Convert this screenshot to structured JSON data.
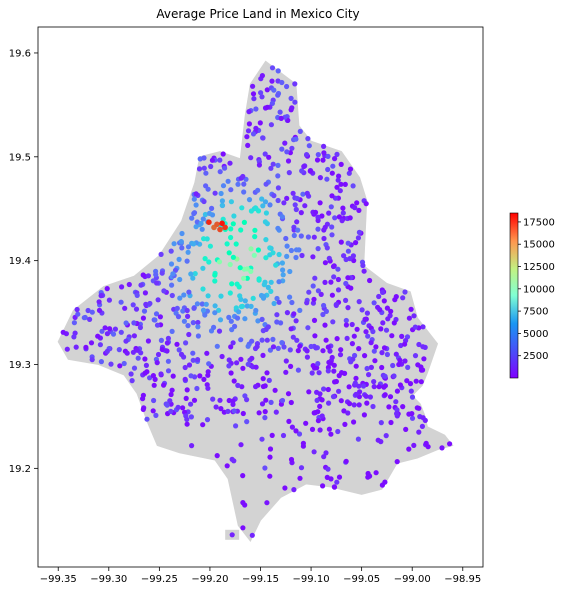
{
  "chart_data": {
    "type": "scatter",
    "title": "Average Price Land in Mexico City",
    "xlabel": "",
    "ylabel": "",
    "xlim": [
      -99.37,
      -98.93
    ],
    "ylim": [
      19.105,
      19.625
    ],
    "x_ticks": [
      -99.35,
      -99.3,
      -99.25,
      -99.2,
      -99.15,
      -99.1,
      -99.05,
      -99.0,
      -98.95
    ],
    "x_tick_labels": [
      "−99.35",
      "−99.30",
      "−99.25",
      "−99.20",
      "−99.15",
      "−99.10",
      "−99.05",
      "−99.00",
      "−98.95"
    ],
    "y_ticks": [
      19.2,
      19.3,
      19.4,
      19.5,
      19.6
    ],
    "y_tick_labels": [
      "19.2",
      "19.3",
      "19.4",
      "19.5",
      "19.6"
    ],
    "grid": false,
    "colorbar": {
      "range": [
        0,
        18500
      ],
      "ticks": [
        2500,
        5000,
        7500,
        10000,
        12500,
        15000,
        17500
      ],
      "tick_labels": [
        "2500",
        "5000",
        "7500",
        "10000",
        "12500",
        "15000",
        "17500"
      ],
      "colormap": "rainbow"
    },
    "base_map_color": "#d3d3d3",
    "boundary_polygon": [
      [
        -99.145,
        19.592
      ],
      [
        -99.115,
        19.57
      ],
      [
        -99.112,
        19.53
      ],
      [
        -99.1,
        19.515
      ],
      [
        -99.07,
        19.505
      ],
      [
        -99.052,
        19.48
      ],
      [
        -99.045,
        19.458
      ],
      [
        -99.048,
        19.395
      ],
      [
        -99.025,
        19.378
      ],
      [
        -99.002,
        19.37
      ],
      [
        -98.995,
        19.345
      ],
      [
        -98.975,
        19.32
      ],
      [
        -98.985,
        19.292
      ],
      [
        -98.99,
        19.28
      ],
      [
        -99.0,
        19.27
      ],
      [
        -98.992,
        19.262
      ],
      [
        -98.988,
        19.252
      ],
      [
        -98.985,
        19.24
      ],
      [
        -98.968,
        19.232
      ],
      [
        -98.96,
        19.222
      ],
      [
        -98.975,
        19.218
      ],
      [
        -98.995,
        19.21
      ],
      [
        -99.015,
        19.205
      ],
      [
        -99.03,
        19.18
      ],
      [
        -99.05,
        19.175
      ],
      [
        -99.08,
        19.182
      ],
      [
        -99.105,
        19.185
      ],
      [
        -99.13,
        19.172
      ],
      [
        -99.15,
        19.15
      ],
      [
        -99.16,
        19.13
      ],
      [
        -99.172,
        19.145
      ],
      [
        -99.182,
        19.19
      ],
      [
        -99.195,
        19.208
      ],
      [
        -99.23,
        19.215
      ],
      [
        -99.252,
        19.222
      ],
      [
        -99.262,
        19.245
      ],
      [
        -99.272,
        19.272
      ],
      [
        -99.285,
        19.29
      ],
      [
        -99.31,
        19.3
      ],
      [
        -99.34,
        19.305
      ],
      [
        -99.35,
        19.322
      ],
      [
        -99.335,
        19.352
      ],
      [
        -99.305,
        19.375
      ],
      [
        -99.275,
        19.385
      ],
      [
        -99.25,
        19.405
      ],
      [
        -99.228,
        19.438
      ],
      [
        -99.215,
        19.475
      ],
      [
        -99.21,
        19.5
      ],
      [
        -99.19,
        19.505
      ],
      [
        -99.17,
        19.498
      ],
      [
        -99.165,
        19.54
      ],
      [
        -99.16,
        19.57
      ]
    ],
    "islands": [
      [
        -99.178,
        19.136
      ]
    ],
    "hotspots": [
      {
        "x": -99.196,
        "y": 19.432,
        "values_hint": "high"
      },
      {
        "x": -99.193,
        "y": 19.435
      },
      {
        "x": -99.19,
        "y": 19.43
      },
      {
        "x": -99.185,
        "y": 19.432
      },
      {
        "x": -99.201,
        "y": 19.437
      },
      {
        "x": -99.188,
        "y": 19.436
      }
    ],
    "points": []
  }
}
